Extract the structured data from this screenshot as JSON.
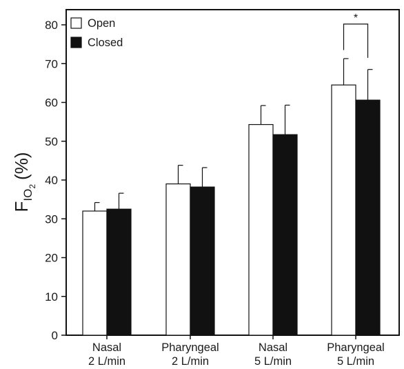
{
  "chart_data": {
    "type": "bar",
    "ylabel": {
      "main": "F",
      "sub": "IO",
      "subsub": "2",
      "unit": "(%)"
    },
    "ylim": [
      0,
      85
    ],
    "yticks": [
      0,
      10,
      20,
      30,
      40,
      50,
      60,
      70,
      80
    ],
    "grid": false,
    "legend_position": "top-left",
    "categories": [
      [
        "Nasal",
        "2 L/min"
      ],
      [
        "Pharyngeal",
        "2 L/min"
      ],
      [
        "Nasal",
        "5 L/min"
      ],
      [
        "Pharyngeal",
        "5 L/min"
      ]
    ],
    "series": [
      {
        "name": "Open",
        "color": "#ffffff",
        "values": [
          32.0,
          39.0,
          54.3,
          64.5
        ],
        "errors": [
          2.2,
          4.8,
          4.9,
          6.8
        ]
      },
      {
        "name": "Closed",
        "color": "#111111",
        "values": [
          32.5,
          38.2,
          51.7,
          60.6
        ],
        "errors": [
          4.1,
          5.0,
          7.6,
          7.9
        ]
      }
    ],
    "annotations": [
      {
        "text": "*",
        "category_index": 3,
        "bracket_y": 80.2,
        "bracket_bottom": [
          73.5,
          71.5
        ]
      }
    ]
  }
}
